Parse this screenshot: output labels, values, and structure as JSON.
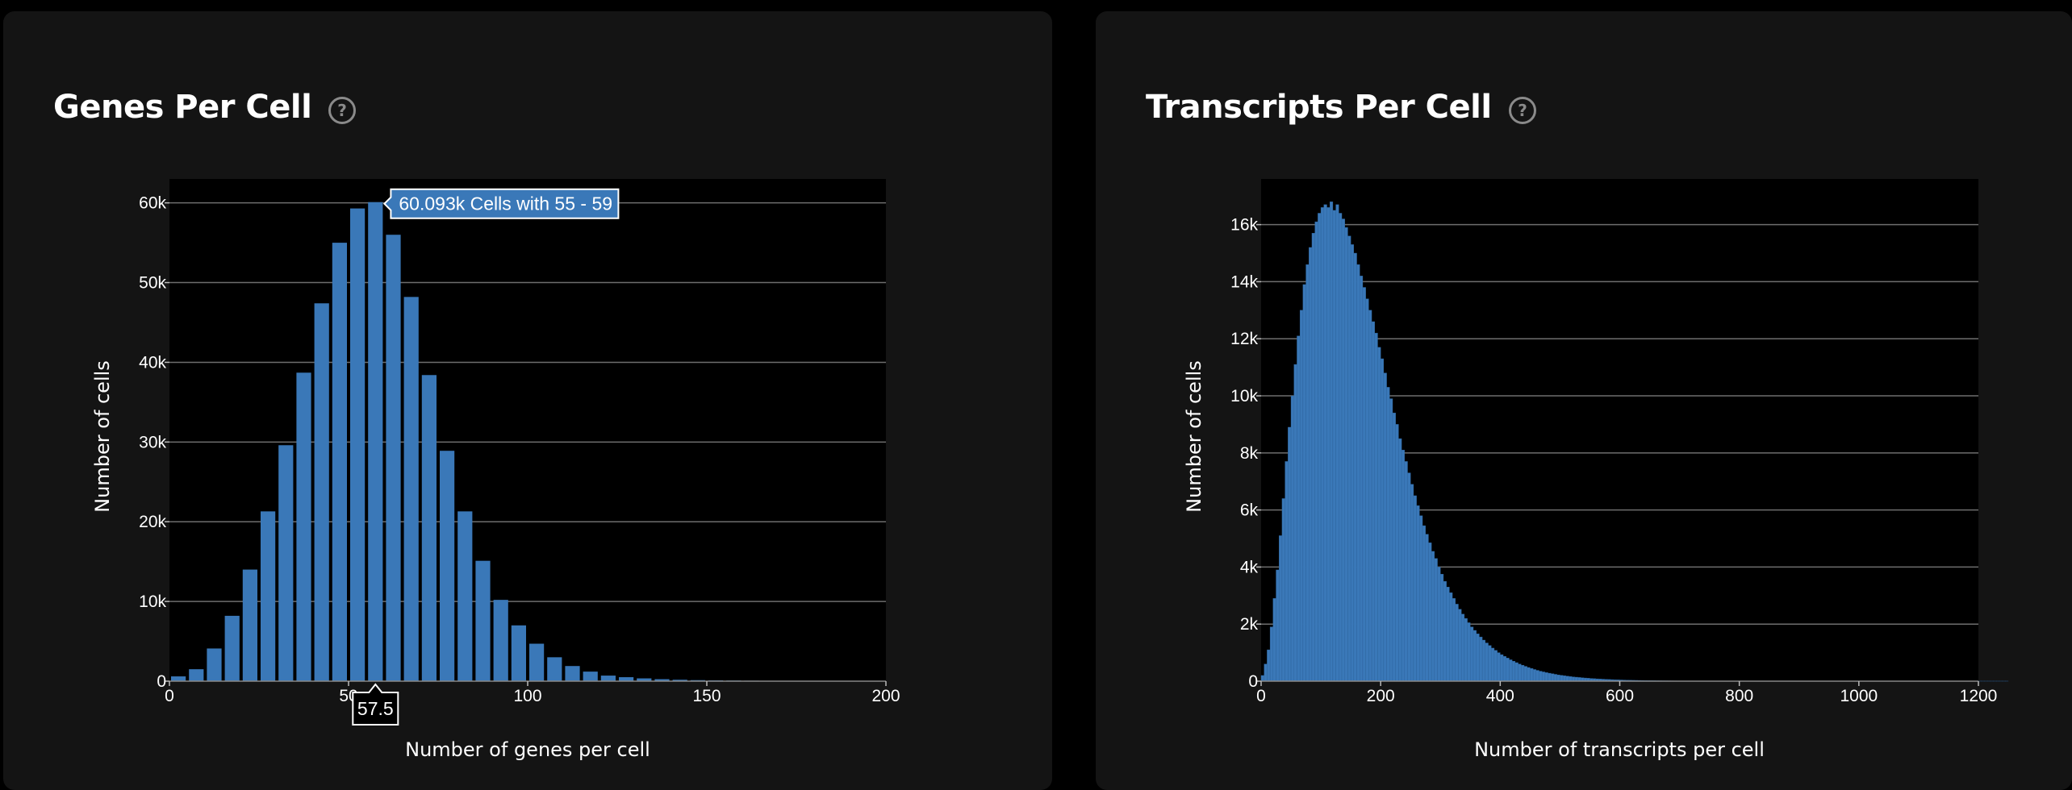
{
  "colors": {
    "page_bg": "#000000",
    "panel_bg": "#141414",
    "plot_bg": "#000000",
    "bar": "#3a78b8",
    "grid": "#6e6e6e",
    "tooltip_bg": "#3a78b8",
    "text": "#ffffff"
  },
  "icons": {
    "help": "question-circle-icon"
  },
  "chart_data": [
    {
      "type": "bar",
      "title": "Genes Per Cell",
      "xlabel": "Number of genes per cell",
      "ylabel": "Number of cells",
      "bin_width": 5,
      "bin_starts": [
        0,
        5,
        10,
        15,
        20,
        25,
        30,
        35,
        40,
        45,
        50,
        55,
        60,
        65,
        70,
        75,
        80,
        85,
        90,
        95,
        100,
        105,
        110,
        115,
        120,
        125,
        130,
        135,
        140,
        145,
        150,
        155,
        160,
        165,
        170,
        175,
        180,
        185,
        190,
        195
      ],
      "values": [
        600,
        1500,
        4100,
        8200,
        14000,
        21300,
        29600,
        38700,
        47400,
        55000,
        59300,
        60093,
        56000,
        48200,
        38400,
        28900,
        21300,
        15100,
        10200,
        7000,
        4700,
        3000,
        1900,
        1200,
        700,
        500,
        350,
        250,
        180,
        130,
        100,
        80,
        60,
        50,
        40,
        30,
        25,
        20,
        15,
        10
      ],
      "xlim": [
        0,
        200
      ],
      "ylim": [
        0,
        63000
      ],
      "xticks": [
        0,
        50,
        100,
        150,
        200
      ],
      "xtick_labels": [
        "0",
        "50",
        "100",
        "150",
        "200"
      ],
      "yticks": [
        0,
        10000,
        20000,
        30000,
        40000,
        50000,
        60000
      ],
      "ytick_labels": [
        "0",
        "10k",
        "20k",
        "30k",
        "40k",
        "50k",
        "60k"
      ],
      "grid": true,
      "annotations": {
        "hover_tooltip": "60.093k Cells with 55 - 59",
        "hover_x_label": "57.5",
        "hover_bin_start": 55
      }
    },
    {
      "type": "bar",
      "title": "Transcripts Per Cell",
      "xlabel": "Number of transcripts per cell",
      "ylabel": "Number of cells",
      "bin_width": 5,
      "x_start": 0,
      "values": [
        200,
        600,
        1100,
        1900,
        2900,
        3900,
        5100,
        6400,
        7700,
        8900,
        10000,
        11100,
        12100,
        13000,
        13900,
        14600,
        15200,
        15700,
        16100,
        16400,
        16600,
        16700,
        16600,
        16800,
        16500,
        16700,
        16400,
        16200,
        15900,
        15600,
        15300,
        15000,
        14600,
        14200,
        13800,
        13400,
        13000,
        12600,
        12200,
        11700,
        11300,
        10800,
        10300,
        9900,
        9400,
        9000,
        8500,
        8100,
        7700,
        7300,
        6900,
        6500,
        6150,
        5800,
        5450,
        5150,
        4850,
        4550,
        4300,
        4000,
        3750,
        3500,
        3300,
        3100,
        2900,
        2700,
        2520,
        2350,
        2200,
        2050,
        1900,
        1780,
        1660,
        1550,
        1440,
        1340,
        1250,
        1160,
        1080,
        1000,
        930,
        870,
        810,
        750,
        700,
        650,
        600,
        560,
        520,
        480,
        445,
        410,
        380,
        350,
        325,
        300,
        280,
        260,
        240,
        220,
        205,
        190,
        175,
        162,
        150,
        140,
        130,
        120,
        111,
        103,
        95,
        88,
        81,
        75,
        70,
        65,
        60,
        55,
        51,
        47,
        43,
        40,
        37,
        34,
        31,
        29,
        27,
        25,
        23,
        21,
        19,
        18,
        16,
        15,
        14,
        13,
        12,
        11,
        10,
        9,
        8,
        8,
        7,
        7,
        6,
        6,
        5,
        5,
        5,
        4,
        4,
        4,
        3,
        3,
        3,
        3,
        2,
        2,
        2,
        2,
        2,
        2,
        2,
        2,
        1,
        1,
        1,
        1,
        1,
        1,
        1,
        1,
        1,
        1,
        1,
        1,
        1,
        1,
        1,
        1,
        1,
        1,
        1,
        1,
        1,
        1,
        1,
        1,
        1,
        1,
        1,
        1,
        1,
        1,
        1,
        1,
        1,
        1,
        1,
        1,
        1,
        1,
        1,
        1,
        1,
        1,
        1,
        1,
        1,
        1,
        1,
        1,
        1,
        1,
        1,
        1,
        1,
        1,
        1,
        1,
        1,
        1,
        1,
        1,
        1,
        1,
        1,
        1,
        1,
        1,
        1,
        1,
        1,
        1,
        1,
        1,
        1,
        1,
        1,
        1,
        1,
        1,
        1,
        1,
        1,
        1,
        1,
        1,
        1,
        1
      ],
      "xlim": [
        0,
        1200
      ],
      "ylim": [
        0,
        17600
      ],
      "xticks": [
        0,
        200,
        400,
        600,
        800,
        1000,
        1200
      ],
      "xtick_labels": [
        "0",
        "200",
        "400",
        "600",
        "800",
        "1000",
        "1200"
      ],
      "yticks": [
        0,
        2000,
        4000,
        6000,
        8000,
        10000,
        12000,
        14000,
        16000
      ],
      "ytick_labels": [
        "0",
        "2k",
        "4k",
        "6k",
        "8k",
        "10k",
        "12k",
        "14k",
        "16k"
      ],
      "grid": true
    }
  ]
}
